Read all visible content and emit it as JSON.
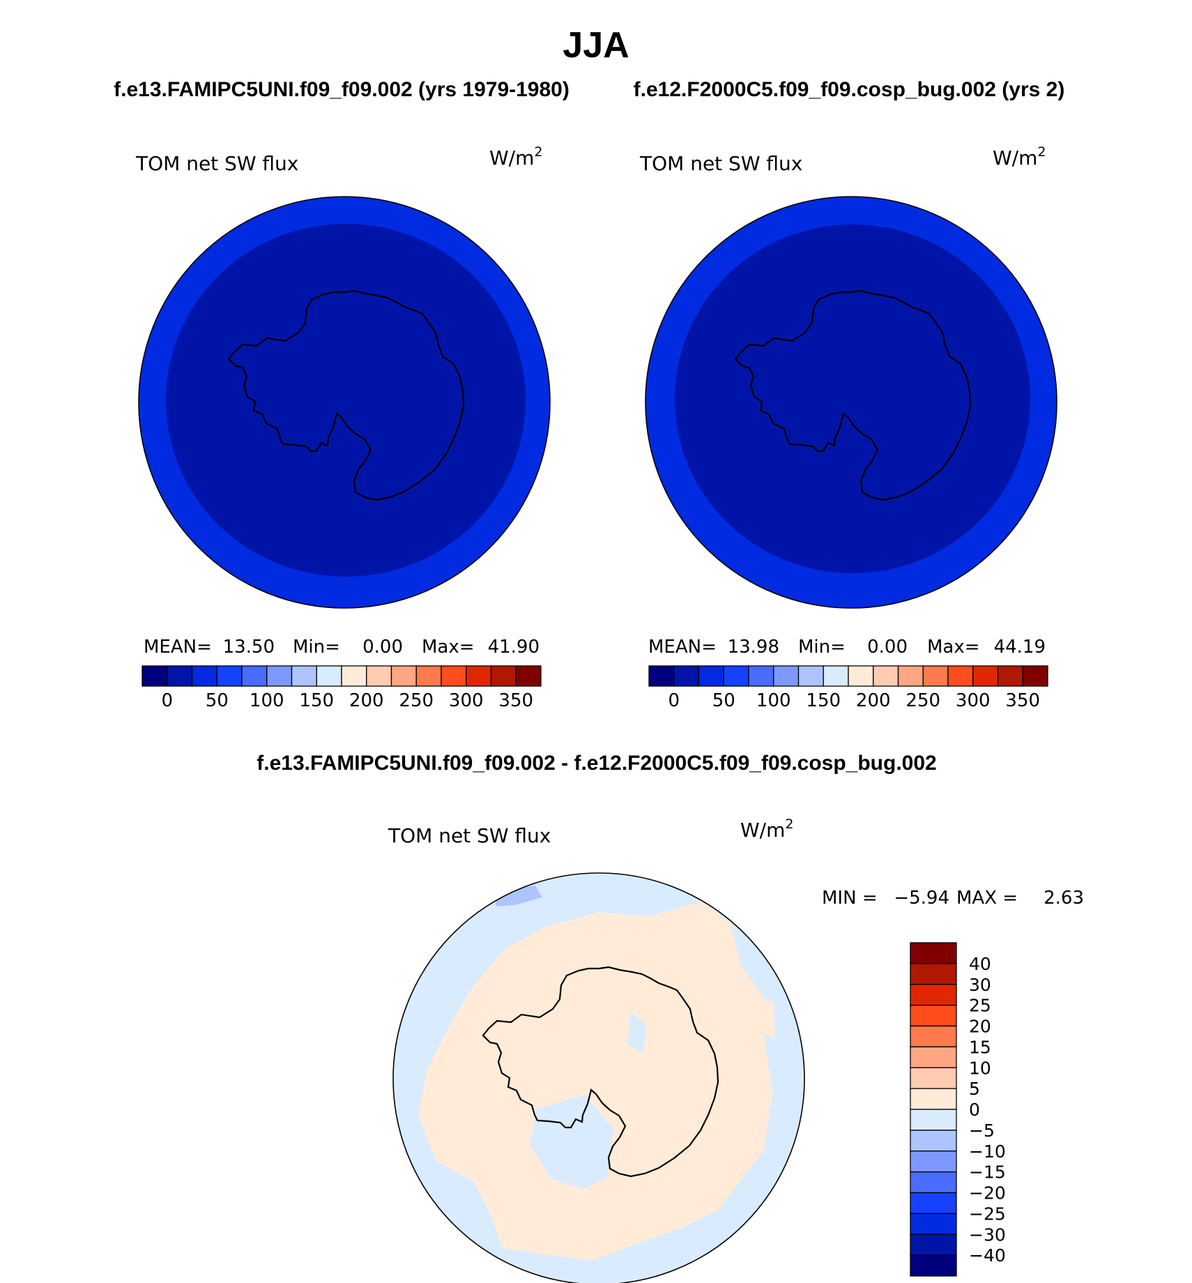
{
  "figure": {
    "title": "JJA",
    "top_left_case": "f.e13.FAMIPC5UNI.f09_f09.002 (yrs 1979-1980)",
    "top_right_case": "f.e12.F2000C5.f09_f09.cosp_bug.002 (yrs 2)",
    "diff_title": "f.e13.FAMIPC5UNI.f09_f09.002 - f.e12.F2000C5.f09_f09.cosp_bug.002"
  },
  "chart_data": [
    {
      "type": "heatmap",
      "projection": "south polar stereographic",
      "variable": "TOM net SW flux",
      "units": "W/m",
      "units_exponent": "2",
      "stats": {
        "mean_label": "MEAN=",
        "mean": "13.50",
        "min_label": "Min=",
        "min": "0.00",
        "max_label": "Max=",
        "max": "41.90"
      },
      "colorbar": {
        "orientation": "horizontal",
        "tick_labels": [
          "0",
          "50",
          "100",
          "150",
          "200",
          "250",
          "300",
          "350"
        ],
        "colors": [
          "#00007f",
          "#0015a8",
          "#002be0",
          "#1442ff",
          "#4a6cff",
          "#7d99ff",
          "#adc4ff",
          "#d9ebff",
          "#ffebd8",
          "#ffcbb1",
          "#ffa682",
          "#ff7a4d",
          "#ff4d1c",
          "#e02800",
          "#b01800",
          "#800000"
        ]
      },
      "field": {
        "inner_level_color": "#0015a8",
        "outer_level_color": "#002be0"
      }
    },
    {
      "type": "heatmap",
      "projection": "south polar stereographic",
      "variable": "TOM net SW flux",
      "units": "W/m",
      "units_exponent": "2",
      "stats": {
        "mean_label": "MEAN=",
        "mean": "13.98",
        "min_label": "Min=",
        "min": "0.00",
        "max_label": "Max=",
        "max": "44.19"
      },
      "colorbar": {
        "orientation": "horizontal",
        "tick_labels": [
          "0",
          "50",
          "100",
          "150",
          "200",
          "250",
          "300",
          "350"
        ],
        "colors": [
          "#00007f",
          "#0015a8",
          "#002be0",
          "#1442ff",
          "#4a6cff",
          "#7d99ff",
          "#adc4ff",
          "#d9ebff",
          "#ffebd8",
          "#ffcbb1",
          "#ffa682",
          "#ff7a4d",
          "#ff4d1c",
          "#e02800",
          "#b01800",
          "#800000"
        ]
      },
      "field": {
        "inner_level_color": "#0015a8",
        "outer_level_color": "#002be0"
      }
    },
    {
      "type": "heatmap",
      "projection": "south polar stereographic",
      "variable": "TOM net SW flux",
      "units": "W/m",
      "units_exponent": "2",
      "stats": {
        "min_label": "MIN =",
        "min": "−5.94",
        "max_label": "MAX =",
        "max": "2.63"
      },
      "colorbar": {
        "orientation": "vertical",
        "tick_labels": [
          "40",
          "30",
          "25",
          "20",
          "15",
          "10",
          "5",
          "0",
          "−5",
          "−10",
          "−15",
          "−20",
          "−25",
          "−30",
          "−40"
        ],
        "colors": [
          "#800000",
          "#b01800",
          "#e02800",
          "#ff4d1c",
          "#ff7a4d",
          "#ffa682",
          "#ffcbb1",
          "#ffebd8",
          "#d9ebff",
          "#adc4ff",
          "#7d99ff",
          "#4a6cff",
          "#1442ff",
          "#002be0",
          "#0015a8",
          "#00007f"
        ]
      },
      "field": {
        "positive_color": "#ffebd8",
        "negative_color": "#d9ebff",
        "strong_negative_color": "#adc4ff"
      }
    }
  ]
}
